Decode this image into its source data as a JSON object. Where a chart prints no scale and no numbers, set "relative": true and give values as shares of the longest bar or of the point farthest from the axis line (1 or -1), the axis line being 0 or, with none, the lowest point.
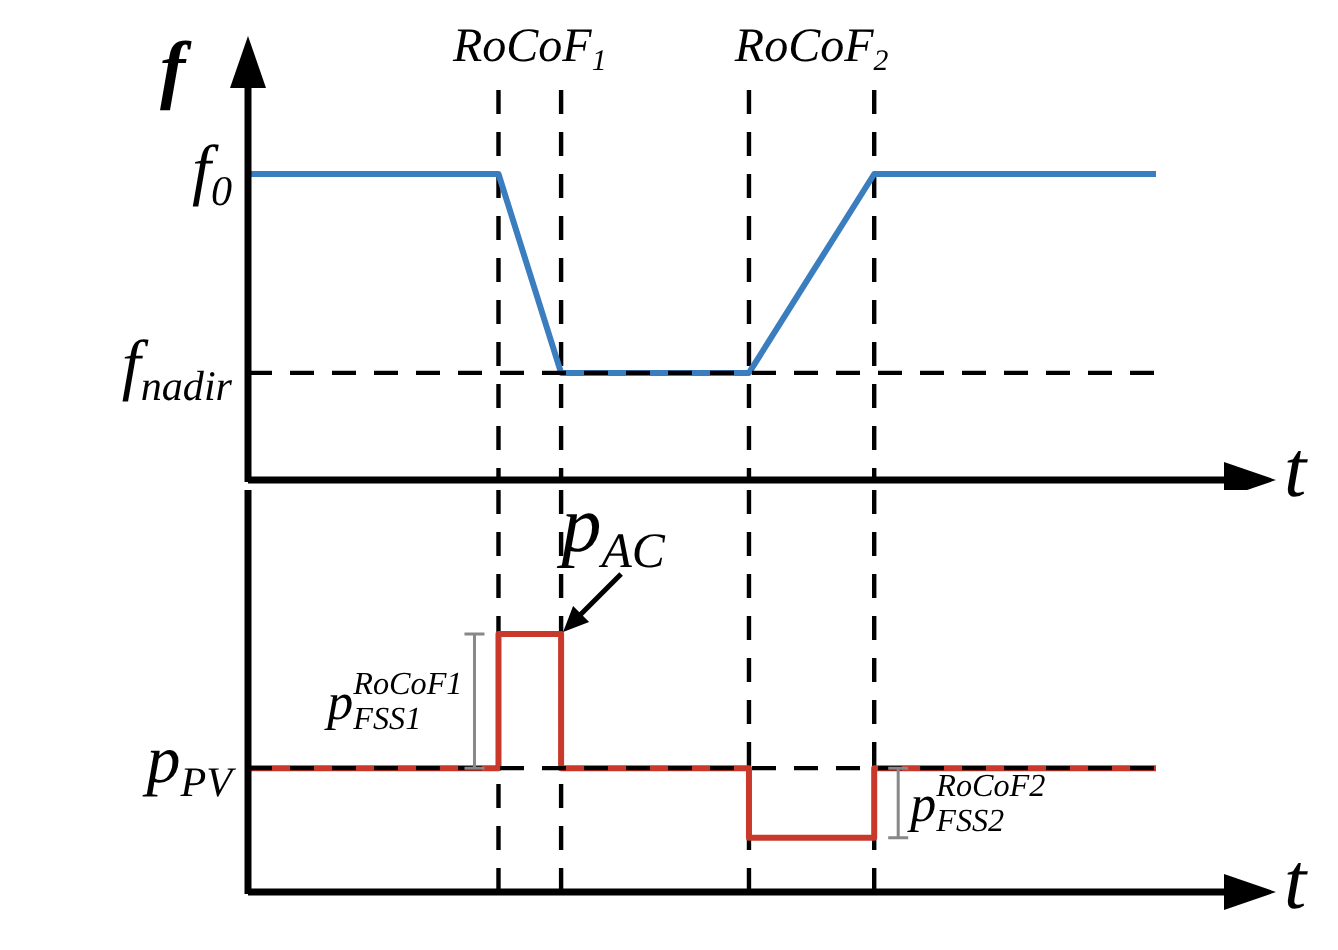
{
  "chart_data": [
    {
      "type": "line",
      "relative": true,
      "ylabel": "f",
      "xlabel": "t",
      "categories": [
        null,
        null,
        null,
        null,
        null,
        null,
        null,
        null,
        null,
        null,
        null,
        null,
        null,
        null,
        null,
        null,
        null,
        null,
        null,
        null,
        null,
        null,
        null,
        null,
        null,
        null,
        null,
        null,
        null,
        null
      ],
      "series": [
        {
          "color": "#3a7ebf",
          "values": [
            1,
            1,
            1,
            1,
            1,
            1,
            1,
            1,
            1,
            0.675,
            0.35,
            0.35,
            0.35,
            0.35,
            0.35,
            0.35,
            0.35,
            0.5125,
            0.675,
            0.8375,
            1,
            1,
            1,
            1,
            1,
            1,
            1,
            1,
            1,
            1
          ]
        }
      ],
      "ref_lines": [
        {
          "axis": "y",
          "value": 0.35,
          "label": "f$_{nadir}$",
          "line_style": "dashed",
          "color": "#000000"
        }
      ],
      "grid": "x",
      "annotations": [
        "f$_{0}$",
        "RoCoF$_{1}$",
        "RoCoF$_{2}$"
      ]
    },
    {
      "type": "step",
      "relative": true,
      "xlabel": "t",
      "categories": [
        null,
        null,
        null,
        null,
        null,
        null,
        null,
        null,
        null,
        null,
        null,
        null,
        null,
        null,
        null,
        null,
        null,
        null,
        null,
        null,
        null,
        null,
        null,
        null,
        null,
        null,
        null,
        null,
        null,
        null
      ],
      "series": [
        {
          "color": "#c8392b",
          "values": [
            0.48,
            0.48,
            0.48,
            0.48,
            0.48,
            0.48,
            0.48,
            0.48,
            1,
            1,
            0.48,
            0.48,
            0.48,
            0.48,
            0.48,
            0.48,
            0.21,
            0.21,
            0.21,
            0.21,
            0.48,
            0.48,
            0.48,
            0.48,
            0.48,
            0.48,
            0.48,
            0.48,
            0.48,
            0.48
          ]
        }
      ],
      "ref_lines": [
        {
          "axis": "y",
          "value": 0.48,
          "label": "p$_{PV}$",
          "line_style": "dashed",
          "color": "#000000"
        }
      ],
      "grid": "x",
      "annotations": [
        "p$_{AC}$",
        "p$^{RoCoF1}$$_{FSS1}$",
        "p$^{RoCoF2}$$_{FSS2}$"
      ]
    }
  ]
}
